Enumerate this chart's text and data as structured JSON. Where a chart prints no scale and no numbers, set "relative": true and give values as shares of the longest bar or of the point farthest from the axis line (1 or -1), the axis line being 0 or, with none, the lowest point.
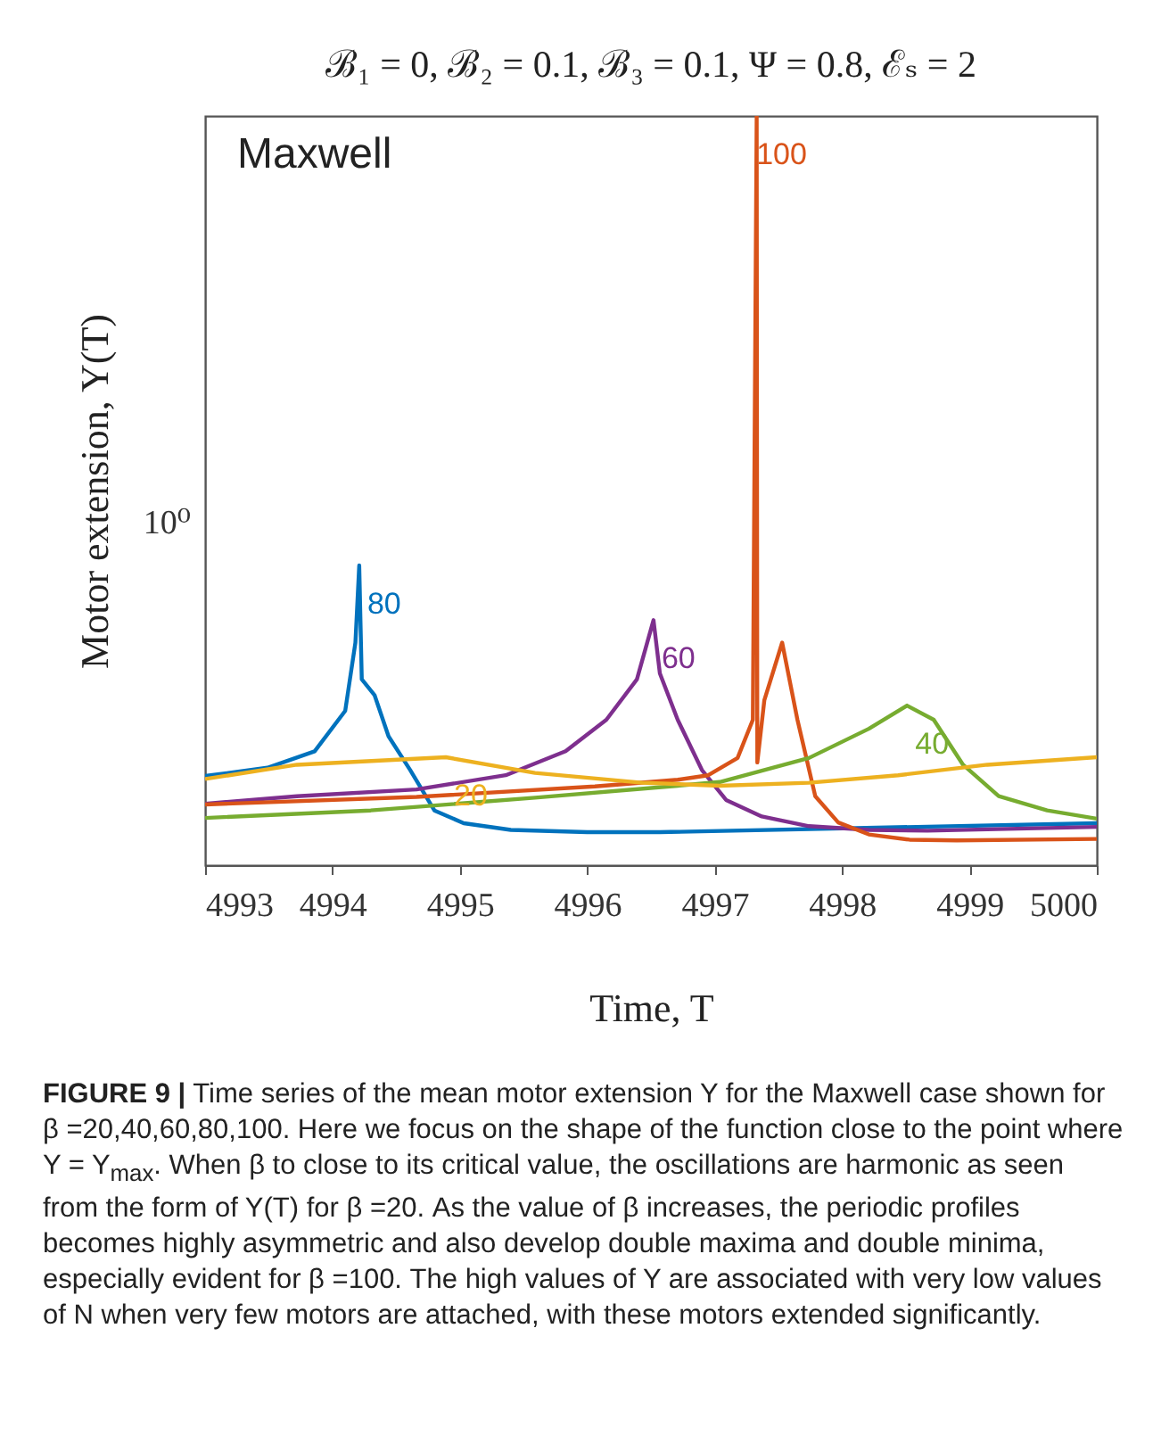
{
  "chart_data": {
    "type": "line",
    "title": "ℬ₁ = 0,  ℬ₂ = 0.1,  ℬ₃ = 0.1,  Ψ = 0.8,  ℰₛ = 2",
    "xlabel": "Time, T",
    "ylabel": "Motor extension, Y(T)",
    "relative": true,
    "xlim": [
      4993,
      5000
    ],
    "xticks": [
      4993,
      4994,
      4995,
      4996,
      4997,
      4998,
      4999,
      5000
    ],
    "series": [
      {
        "name": "80",
        "color": "#0072bd",
        "x": [
          4993.0,
          4993.49,
          4993.86,
          4994.1,
          4994.18,
          4994.21,
          4994.23,
          4994.33,
          4994.44,
          4994.61,
          4994.8,
          4995.03,
          4995.4,
          4996.0,
          4996.57,
          5000
        ],
        "values": [
          0.119,
          0.13,
          0.152,
          0.206,
          0.297,
          0.4,
          0.248,
          0.227,
          0.172,
          0.127,
          0.073,
          0.056,
          0.047,
          0.044,
          0.044,
          0.056
        ]
      },
      {
        "name": "60",
        "color": "#7e2f8e",
        "x": [
          4993.0,
          4993.72,
          4994.66,
          4995.36,
          4995.83,
          4996.15,
          4996.39,
          4996.52,
          4996.57,
          4996.71,
          4996.9,
          4997.09,
          4997.37,
          4997.74,
          4998.21,
          4998.67,
          5000
        ],
        "values": [
          0.082,
          0.092,
          0.101,
          0.12,
          0.152,
          0.194,
          0.248,
          0.327,
          0.256,
          0.194,
          0.127,
          0.087,
          0.065,
          0.052,
          0.047,
          0.046,
          0.051
        ]
      },
      {
        "name": "100",
        "color": "#d95319",
        "x": [
          4993.0,
          4994.66,
          4996.06,
          4996.71,
          4996.95,
          4997.18,
          4997.3,
          4997.33,
          4997.335,
          4997.39,
          4997.53,
          4997.65,
          4997.79,
          4997.97,
          4998.21,
          4998.53,
          4998.9,
          5000
        ],
        "values": [
          0.081,
          0.091,
          0.105,
          0.114,
          0.12,
          0.143,
          0.194,
          1,
          0.137,
          0.22,
          0.297,
          0.194,
          0.092,
          0.057,
          0.041,
          0.034,
          0.033,
          0.035
        ]
      },
      {
        "name": "40",
        "color": "#77ac30",
        "x": [
          4993.0,
          4994.3,
          4995.59,
          4996.71,
          4997.04,
          4997.74,
          4998.21,
          4998.51,
          4998.72,
          4998.95,
          4999.23,
          4999.61,
          5000
        ],
        "values": [
          0.063,
          0.073,
          0.09,
          0.106,
          0.111,
          0.143,
          0.182,
          0.213,
          0.194,
          0.134,
          0.092,
          0.073,
          0.062
        ]
      },
      {
        "name": "20",
        "color": "#edb120",
        "x": [
          4993.0,
          4993.72,
          4994.89,
          4995.59,
          4996.43,
          4997.04,
          4997.74,
          4998.44,
          4999.14,
          5000
        ],
        "values": [
          0.115,
          0.134,
          0.144,
          0.123,
          0.11,
          0.106,
          0.11,
          0.12,
          0.134,
          0.144
        ]
      }
    ],
    "annotations": [
      "Maxwell",
      "10⁰",
      "FIGURE 9 | Time series of the mean motor extension Y for the Maxwell case shown for β =20,40,60,80,100. Here we focus on the shape of the function close to the point where Y = Y$_{max}$. When β to close to its critical value, the oscillations are harmonic as seen from the form of Y(T) for β =20. As the value of β increases, the periodic profiles becomes highly asymmetric and also develop double maxima and double minima, especially evident for β =100. The high values of Y are associated with very low values of N when very few motors are attached, with these motors extended significantly."
    ]
  }
}
